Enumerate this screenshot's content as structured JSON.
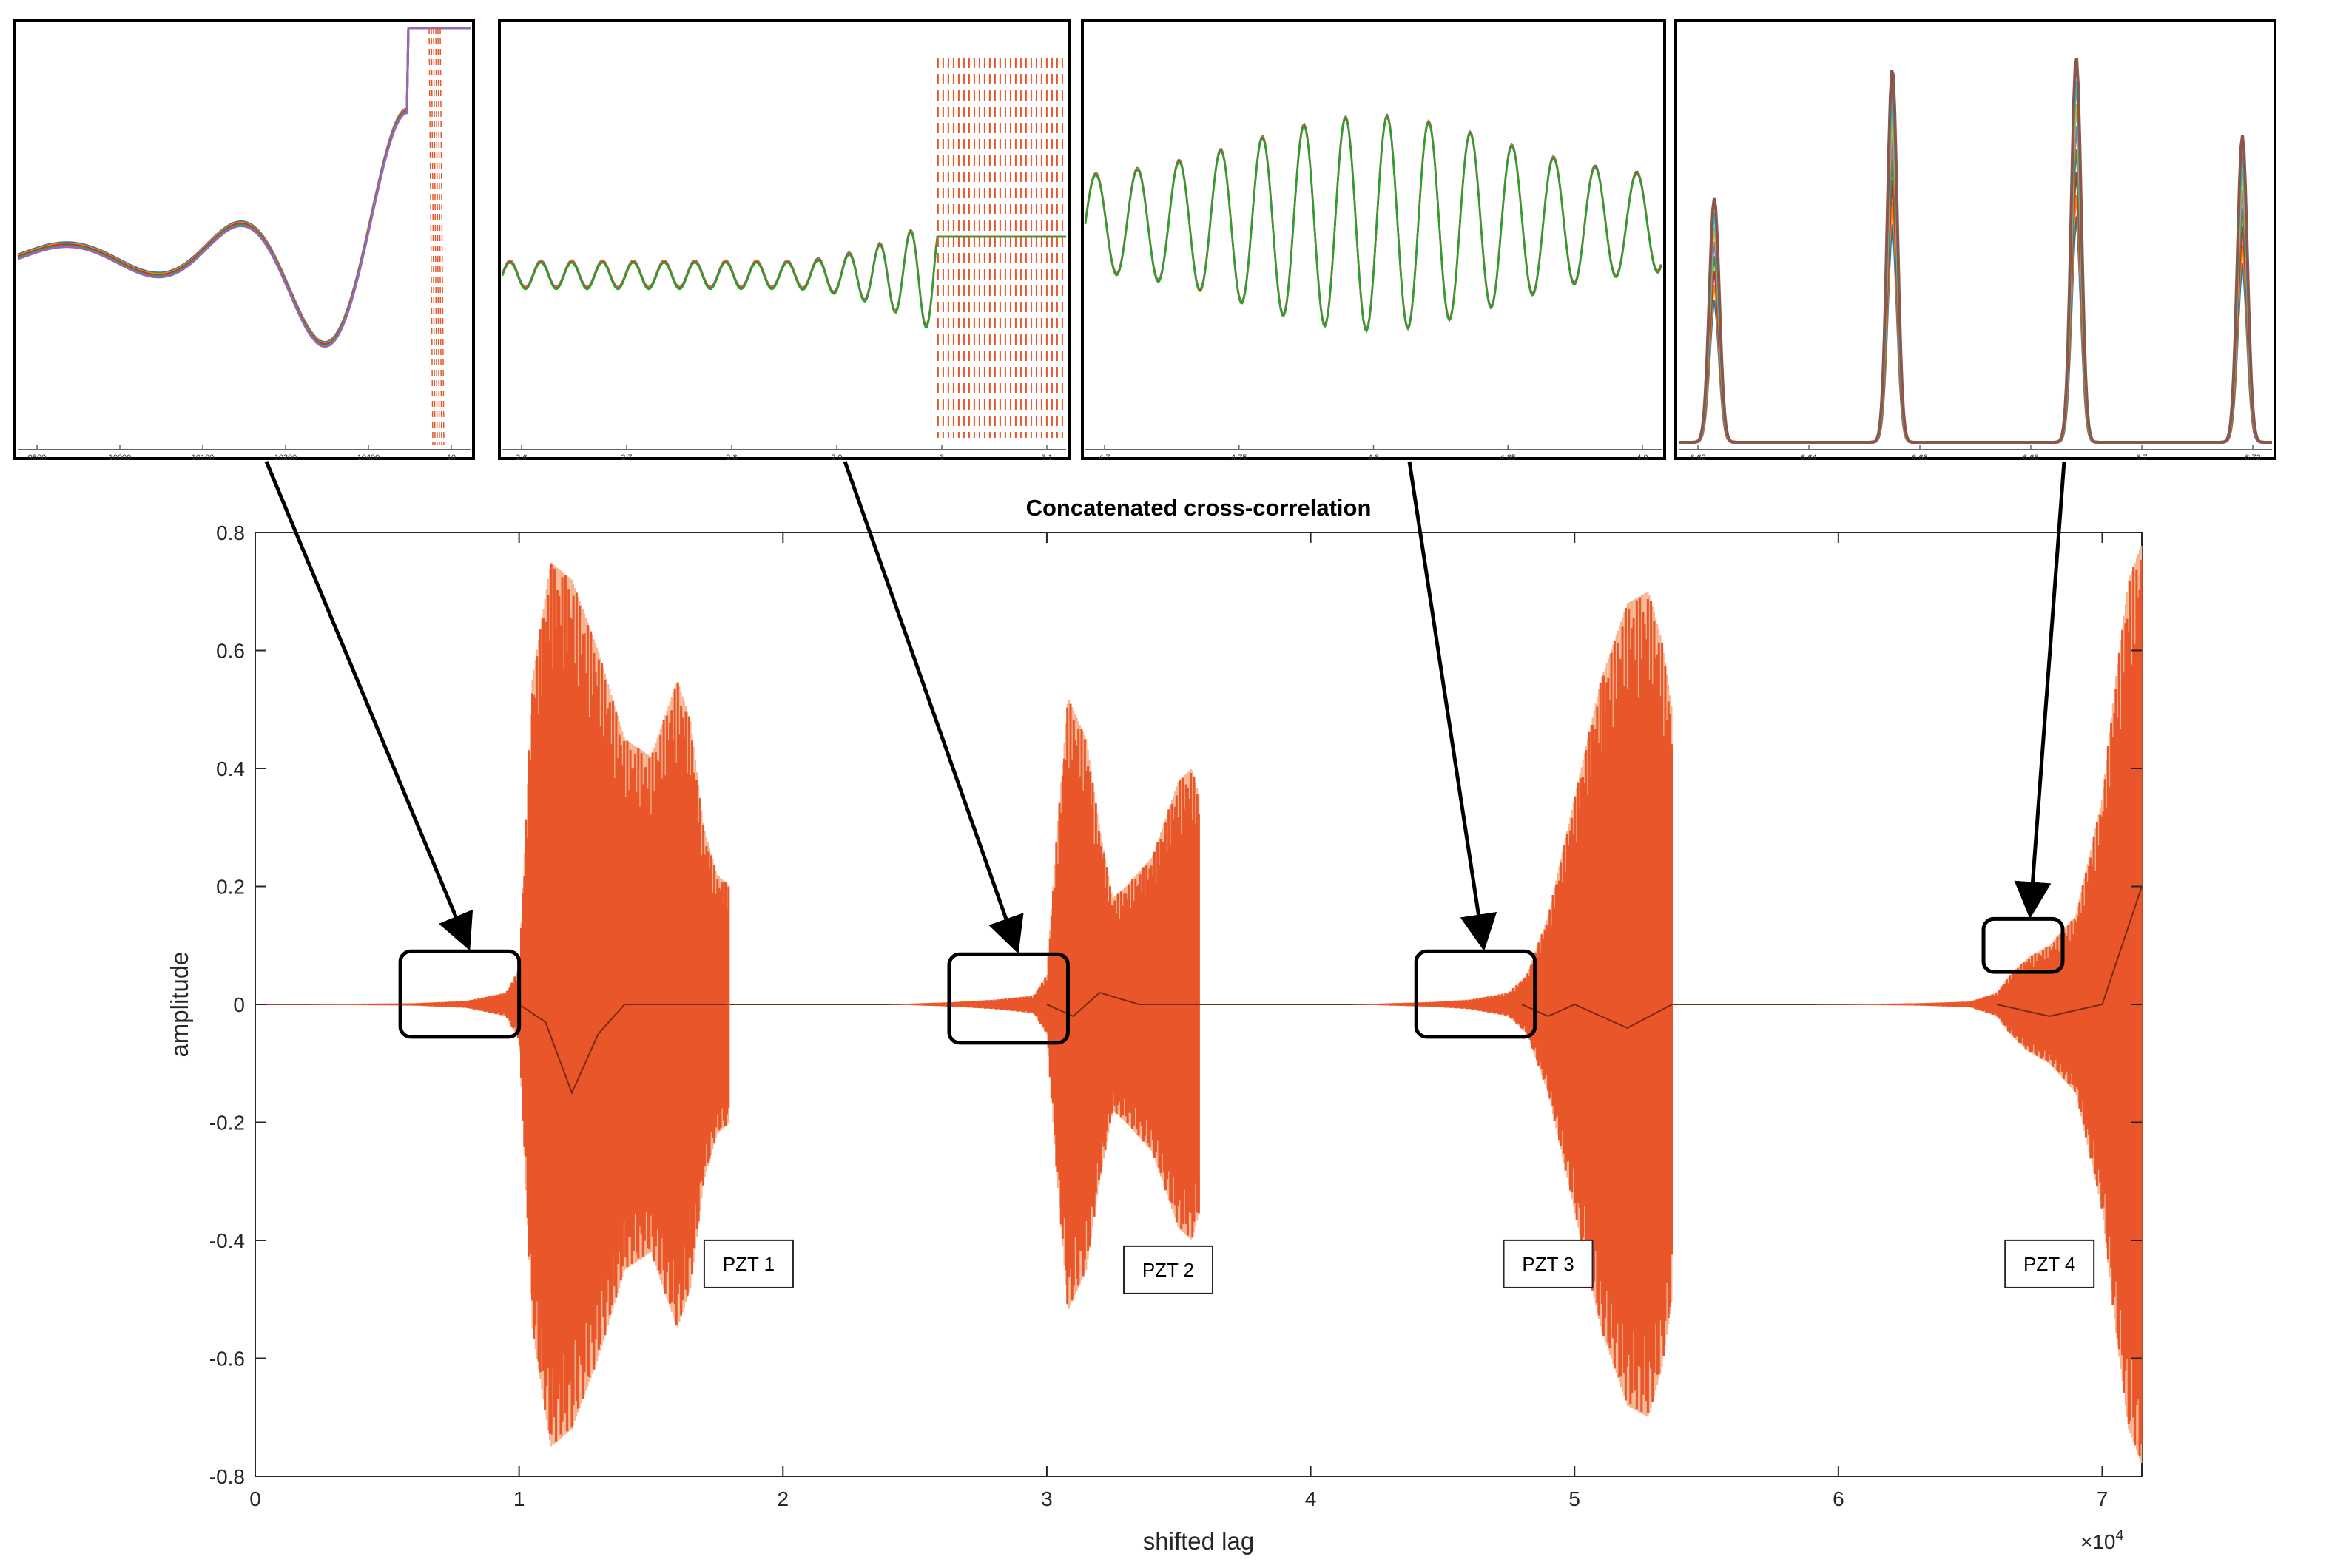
{
  "chart_data": [
    {
      "type": "line",
      "title": "Concatenated cross-correlation",
      "xlabel": "shifted lag",
      "ylabel": "amplitude",
      "x_exponent_label": "×10",
      "x_exponent_power": "4",
      "xlim": [
        0,
        7.15
      ],
      "ylim": [
        -0.8,
        0.8
      ],
      "x_scale_factor": 10000,
      "xticks": [
        "0",
        "1",
        "2",
        "3",
        "4",
        "5",
        "6",
        "7"
      ],
      "yticks": [
        "0.8",
        "0.6",
        "0.4",
        "0.2",
        "0",
        "-0.2",
        "-0.4",
        "-0.6",
        "-0.8"
      ],
      "grid": false,
      "colors": {
        "signal": "#e8562a",
        "envelope_light": "#f5b48f",
        "trace": "#7a2a14",
        "axes": "#262626"
      },
      "annotations": [
        {
          "text": "PZT 1",
          "x": 1.87,
          "y": -0.44
        },
        {
          "text": "PZT 2",
          "x": 3.46,
          "y": -0.45
        },
        {
          "text": "PZT 3",
          "x": 4.9,
          "y": -0.44
        },
        {
          "text": "PZT 4",
          "x": 6.8,
          "y": -0.44
        }
      ],
      "segments": [
        {
          "name": "PZT 1",
          "x_start": 0.0,
          "x_end": 1.8,
          "envelope": [
            [
              0.0,
              0.0
            ],
            [
              0.6,
              0.002
            ],
            [
              0.8,
              0.006
            ],
            [
              0.95,
              0.02
            ],
            [
              1.0,
              0.06
            ],
            [
              1.05,
              0.55
            ],
            [
              1.12,
              0.75
            ],
            [
              1.2,
              0.72
            ],
            [
              1.3,
              0.6
            ],
            [
              1.4,
              0.45
            ],
            [
              1.5,
              0.42
            ],
            [
              1.6,
              0.55
            ],
            [
              1.65,
              0.48
            ],
            [
              1.7,
              0.3
            ],
            [
              1.75,
              0.22
            ],
            [
              1.8,
              0.2
            ]
          ],
          "x_crossing": [
            [
              1.0,
              0.0
            ],
            [
              1.1,
              -0.03
            ],
            [
              1.2,
              -0.15
            ],
            [
              1.3,
              -0.05
            ],
            [
              1.4,
              0.0
            ],
            [
              1.8,
              0.0
            ]
          ]
        },
        {
          "name": "PZT 2",
          "x_start": 2.4,
          "x_end": 3.58,
          "envelope": [
            [
              2.4,
              0.0
            ],
            [
              2.65,
              0.004
            ],
            [
              2.8,
              0.008
            ],
            [
              2.95,
              0.015
            ],
            [
              3.0,
              0.05
            ],
            [
              3.04,
              0.3
            ],
            [
              3.08,
              0.52
            ],
            [
              3.15,
              0.45
            ],
            [
              3.2,
              0.3
            ],
            [
              3.25,
              0.18
            ],
            [
              3.3,
              0.2
            ],
            [
              3.4,
              0.25
            ],
            [
              3.5,
              0.38
            ],
            [
              3.55,
              0.4
            ],
            [
              3.58,
              0.35
            ]
          ],
          "x_crossing": [
            [
              3.0,
              0.0
            ],
            [
              3.1,
              -0.02
            ],
            [
              3.2,
              0.02
            ],
            [
              3.35,
              0.0
            ],
            [
              3.58,
              0.0
            ]
          ]
        },
        {
          "name": "PZT 3",
          "x_start": 4.15,
          "x_end": 5.37,
          "envelope": [
            [
              4.15,
              0.0
            ],
            [
              4.45,
              0.004
            ],
            [
              4.6,
              0.008
            ],
            [
              4.75,
              0.02
            ],
            [
              4.82,
              0.05
            ],
            [
              4.9,
              0.15
            ],
            [
              5.0,
              0.35
            ],
            [
              5.1,
              0.55
            ],
            [
              5.2,
              0.68
            ],
            [
              5.28,
              0.7
            ],
            [
              5.33,
              0.62
            ],
            [
              5.37,
              0.5
            ]
          ],
          "x_crossing": [
            [
              4.8,
              0.0
            ],
            [
              4.9,
              -0.02
            ],
            [
              5.0,
              0.0
            ],
            [
              5.2,
              -0.04
            ],
            [
              5.37,
              0.0
            ]
          ]
        },
        {
          "name": "PZT 4",
          "x_start": 5.9,
          "x_end": 7.15,
          "envelope": [
            [
              5.9,
              0.0
            ],
            [
              6.3,
              0.002
            ],
            [
              6.5,
              0.005
            ],
            [
              6.6,
              0.02
            ],
            [
              6.65,
              0.05
            ],
            [
              6.72,
              0.08
            ],
            [
              6.8,
              0.1
            ],
            [
              6.9,
              0.15
            ],
            [
              7.0,
              0.35
            ],
            [
              7.05,
              0.55
            ],
            [
              7.1,
              0.72
            ],
            [
              7.15,
              0.78
            ]
          ],
          "x_crossing": [
            [
              6.6,
              0.0
            ],
            [
              6.8,
              -0.02
            ],
            [
              7.0,
              0.0
            ],
            [
              7.15,
              0.2
            ]
          ]
        }
      ],
      "zoom_boxes": [
        {
          "x": [
            0.55,
            1.0
          ],
          "y": [
            -0.055,
            0.09
          ]
        },
        {
          "x": [
            2.63,
            3.08
          ],
          "y": [
            -0.065,
            0.085
          ]
        },
        {
          "x": [
            4.4,
            4.85
          ],
          "y": [
            -0.055,
            0.09
          ]
        },
        {
          "x": [
            6.55,
            6.85
          ],
          "y": [
            0.055,
            0.145
          ]
        }
      ]
    },
    {
      "type": "line",
      "name": "inset-1",
      "xticks": [
        "9800",
        "10000",
        "10100",
        "10200",
        "10400",
        "10"
      ],
      "waveform": "rising-oscillation"
    },
    {
      "type": "line",
      "name": "inset-2",
      "xticks": [
        "2.6",
        "2.7",
        "2.8",
        "2.9",
        "3",
        "3.1"
      ],
      "waveform": "small-oscillation-then-burst"
    },
    {
      "type": "line",
      "name": "inset-3",
      "xticks": [
        "4.7",
        "4.75",
        "4.8",
        "4.85",
        "4.9"
      ],
      "waveform": "wave-packet"
    },
    {
      "type": "line",
      "name": "inset-4",
      "xticks": [
        "6.62",
        "6.64",
        "6.66",
        "6.68",
        "6.7",
        "6.72"
      ],
      "waveform": "peaks",
      "peaks": [
        0.62,
        0.95,
        0.98,
        0.78
      ]
    }
  ]
}
